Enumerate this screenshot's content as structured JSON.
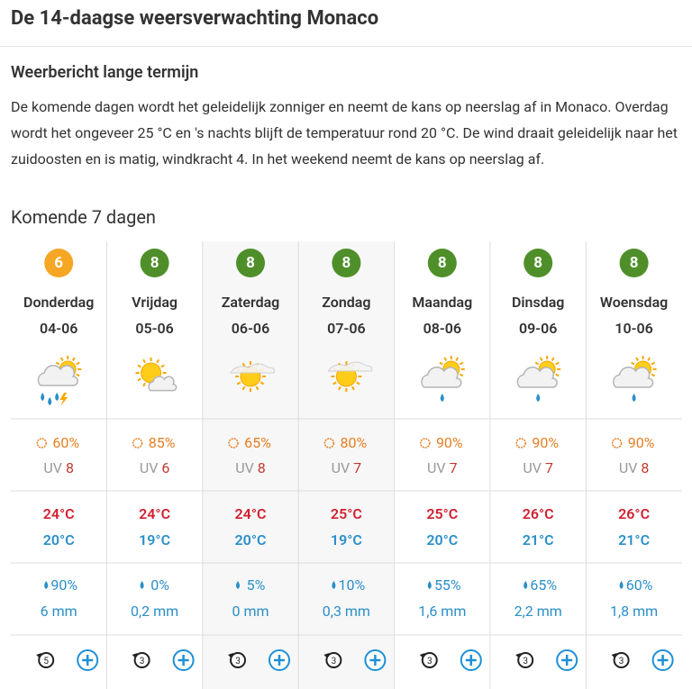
{
  "header": {
    "title": "De 14-daagse weersverwachting Monaco"
  },
  "long_term": {
    "heading": "Weerbericht lange termijn",
    "text": "De komende dagen wordt het geleidelijk zonniger en neemt de kans op neerslag af in Monaco. Overdag wordt het ongeveer 25 °C en 's nachts blijft de temperatuur rond 20 °C. De wind draait geleidelijk naar het zuidoosten en is matig, windkracht 4. In het weekend neemt de kans op neerslag af."
  },
  "week": {
    "heading": "Komende 7 dagen",
    "uv_label": "UV",
    "days": [
      {
        "score": "6",
        "score_color": "#f5a623",
        "day": "Donderdag",
        "date": "04-06",
        "sun": "60%",
        "uv": "8",
        "max": "24°C",
        "min": "20°C",
        "rain": "90%",
        "mm": "6 mm",
        "wind": "5"
      },
      {
        "score": "8",
        "score_color": "#4f8f2a",
        "day": "Vrijdag",
        "date": "05-06",
        "sun": "85%",
        "uv": "6",
        "max": "24°C",
        "min": "19°C",
        "rain": "0%",
        "mm": "0,2 mm",
        "wind": "3"
      },
      {
        "score": "8",
        "score_color": "#4f8f2a",
        "day": "Zaterdag",
        "date": "06-06",
        "sun": "65%",
        "uv": "8",
        "max": "24°C",
        "min": "20°C",
        "rain": "5%",
        "mm": "0 mm",
        "wind": "3"
      },
      {
        "score": "8",
        "score_color": "#4f8f2a",
        "day": "Zondag",
        "date": "07-06",
        "sun": "80%",
        "uv": "7",
        "max": "25°C",
        "min": "19°C",
        "rain": "10%",
        "mm": "0,3 mm",
        "wind": "3"
      },
      {
        "score": "8",
        "score_color": "#4f8f2a",
        "day": "Maandag",
        "date": "08-06",
        "sun": "90%",
        "uv": "7",
        "max": "25°C",
        "min": "20°C",
        "rain": "55%",
        "mm": "1,6 mm",
        "wind": "3"
      },
      {
        "score": "8",
        "score_color": "#4f8f2a",
        "day": "Dinsdag",
        "date": "09-06",
        "sun": "90%",
        "uv": "7",
        "max": "26°C",
        "min": "21°C",
        "rain": "65%",
        "mm": "2,2 mm",
        "wind": "3"
      },
      {
        "score": "8",
        "score_color": "#4f8f2a",
        "day": "Woensdag",
        "date": "10-06",
        "sun": "90%",
        "uv": "8",
        "max": "26°C",
        "min": "21°C",
        "rain": "60%",
        "mm": "1,8 mm",
        "wind": "3"
      }
    ]
  }
}
